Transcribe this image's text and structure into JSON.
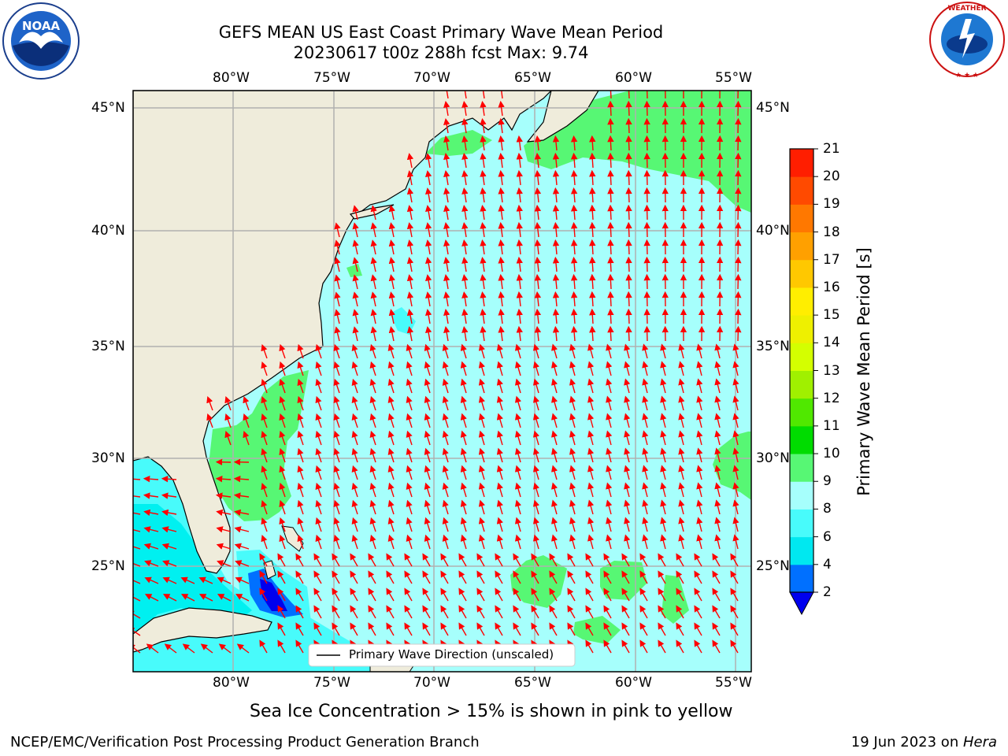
{
  "header": {
    "title_line1": "GEFS MEAN US East Coast Primary Wave Mean Period",
    "title_line2": "20230617 t00z 288h fcst   Max: 9.74"
  },
  "logos": {
    "left": "NOAA",
    "left_ring": "NATIONAL OCEANIC AND ATMOSPHERIC ADMINISTRATION · U.S. DEPARTMENT OF COMMERCE",
    "right_ring": "NATIONAL WEATHER SERVICE"
  },
  "map": {
    "lon_ticks": [
      "80°W",
      "75°W",
      "70°W",
      "65°W",
      "60°W",
      "55°W"
    ],
    "lat_ticks": [
      "45°N",
      "40°N",
      "35°N",
      "30°N",
      "25°N"
    ],
    "legend_label": "Primary Wave Direction (unscaled)",
    "colors": {
      "land": "#efecdb",
      "ocean_8_9": "#a6fffc",
      "ocean_6_8": "#48fbfb",
      "ocean_4_6": "#00f0f0",
      "ocean_9_10": "#57f774",
      "ocean_2_4": "#0070ff",
      "ocean_lt2": "#0000ee",
      "arrow": "#ff0000",
      "grid": "#b0b0b0"
    }
  },
  "colorbar": {
    "label": "Primary Wave Mean Period [s]",
    "ticks": [
      "2",
      "4",
      "6",
      "8",
      "9",
      "10",
      "11",
      "12",
      "13",
      "14",
      "15",
      "16",
      "17",
      "18",
      "19",
      "20",
      "21"
    ],
    "colors": [
      "#0000ee",
      "#0070ff",
      "#00e8f0",
      "#48fbfb",
      "#a6fffc",
      "#57f774",
      "#00dc00",
      "#50e800",
      "#a0f000",
      "#d4ff00",
      "#eef000",
      "#ffee00",
      "#ffc800",
      "#ffa000",
      "#ff7800",
      "#ff4a00",
      "#ff1e00",
      "#ff0000"
    ]
  },
  "caption": "Sea Ice Concentration > 15% is shown in pink to yellow",
  "footer": {
    "left": "NCEP/EMC/Verification Post Processing Product Generation Branch",
    "right_prefix": "19 Jun 2023 on ",
    "right_host": "Hera"
  }
}
